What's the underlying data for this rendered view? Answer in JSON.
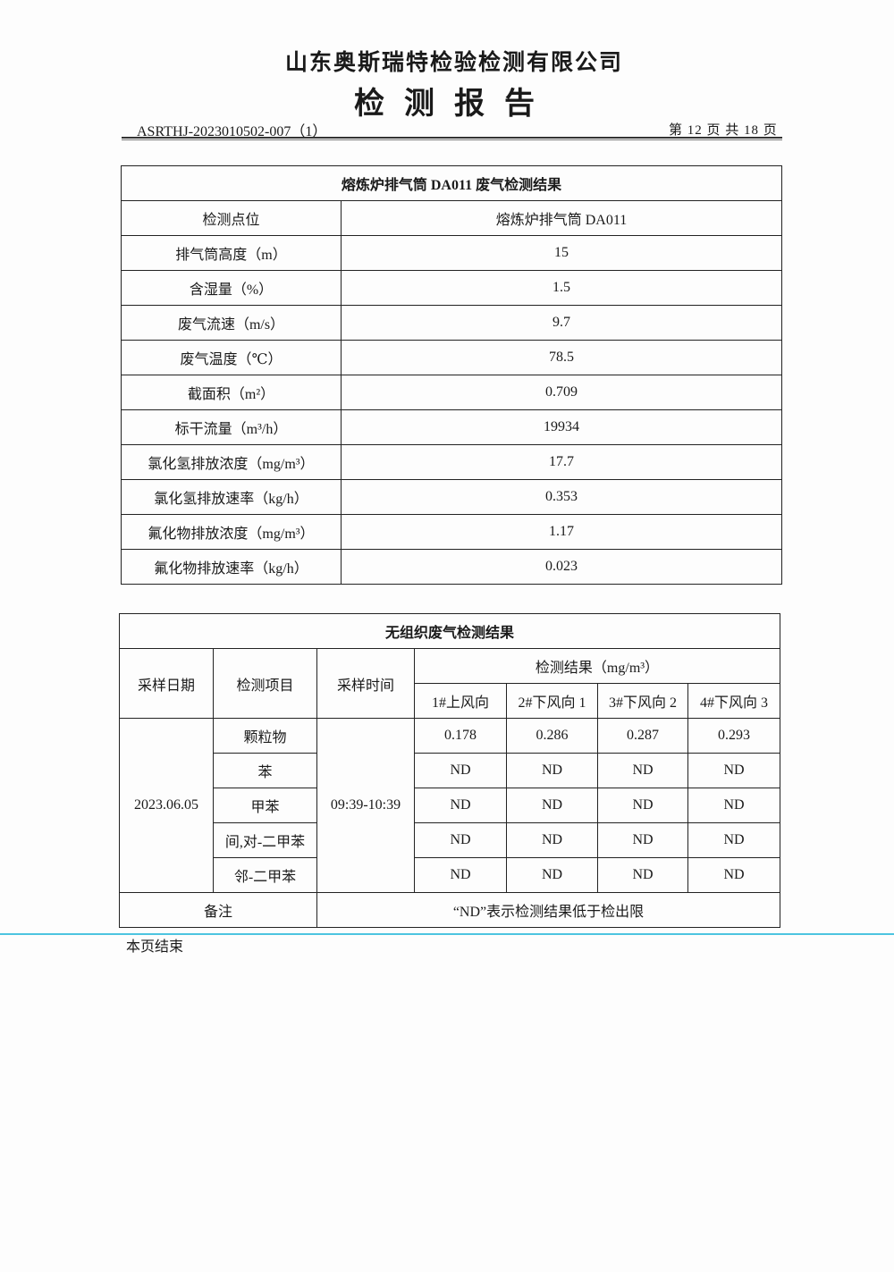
{
  "header": {
    "company": "山东奥斯瑞特检验检测有限公司",
    "title": "检测报告",
    "doc_no": "ASRTHJ-2023010502-007（1）",
    "page_info": "第 12 页 共 18 页"
  },
  "stack_table": {
    "caption": "熔炼炉排气筒 DA011 废气检测结果",
    "rows": [
      {
        "label": "检测点位",
        "value": "熔炼炉排气筒 DA011"
      },
      {
        "label": "排气筒高度（m）",
        "value": "15"
      },
      {
        "label": "含湿量（%）",
        "value": "1.5"
      },
      {
        "label": "废气流速（m/s）",
        "value": "9.7"
      },
      {
        "label": "废气温度（℃）",
        "value": "78.5"
      },
      {
        "label": "截面积（m²）",
        "value": "0.709"
      },
      {
        "label": "标干流量（m³/h）",
        "value": "19934"
      },
      {
        "label": "氯化氢排放浓度（mg/m³）",
        "value": "17.7"
      },
      {
        "label": "氯化氢排放速率（kg/h）",
        "value": "0.353"
      },
      {
        "label": "氟化物排放浓度（mg/m³）",
        "value": "1.17"
      },
      {
        "label": "氟化物排放速率（kg/h）",
        "value": "0.023"
      }
    ]
  },
  "fugitive_table": {
    "caption": "无组织废气检测结果",
    "headers": {
      "date": "采样日期",
      "item": "检测项目",
      "time": "采样时间",
      "result": "检测结果（mg/m³）",
      "points": [
        "1#上风向",
        "2#下风向 1",
        "3#下风向 2",
        "4#下风向 3"
      ]
    },
    "date": "2023.06.05",
    "time": "09:39-10:39",
    "rows": [
      {
        "item": "颗粒物",
        "values": [
          "0.178",
          "0.286",
          "0.287",
          "0.293"
        ]
      },
      {
        "item": "苯",
        "values": [
          "ND",
          "ND",
          "ND",
          "ND"
        ]
      },
      {
        "item": "甲苯",
        "values": [
          "ND",
          "ND",
          "ND",
          "ND"
        ]
      },
      {
        "item": "间,对-二甲苯",
        "values": [
          "ND",
          "ND",
          "ND",
          "ND"
        ]
      },
      {
        "item": "邻-二甲苯",
        "values": [
          "ND",
          "ND",
          "ND",
          "ND"
        ]
      }
    ],
    "remark_label": "备注",
    "remark": "“ND”表示检测结果低于检出限"
  },
  "footer": {
    "end_note": "本页结束"
  }
}
